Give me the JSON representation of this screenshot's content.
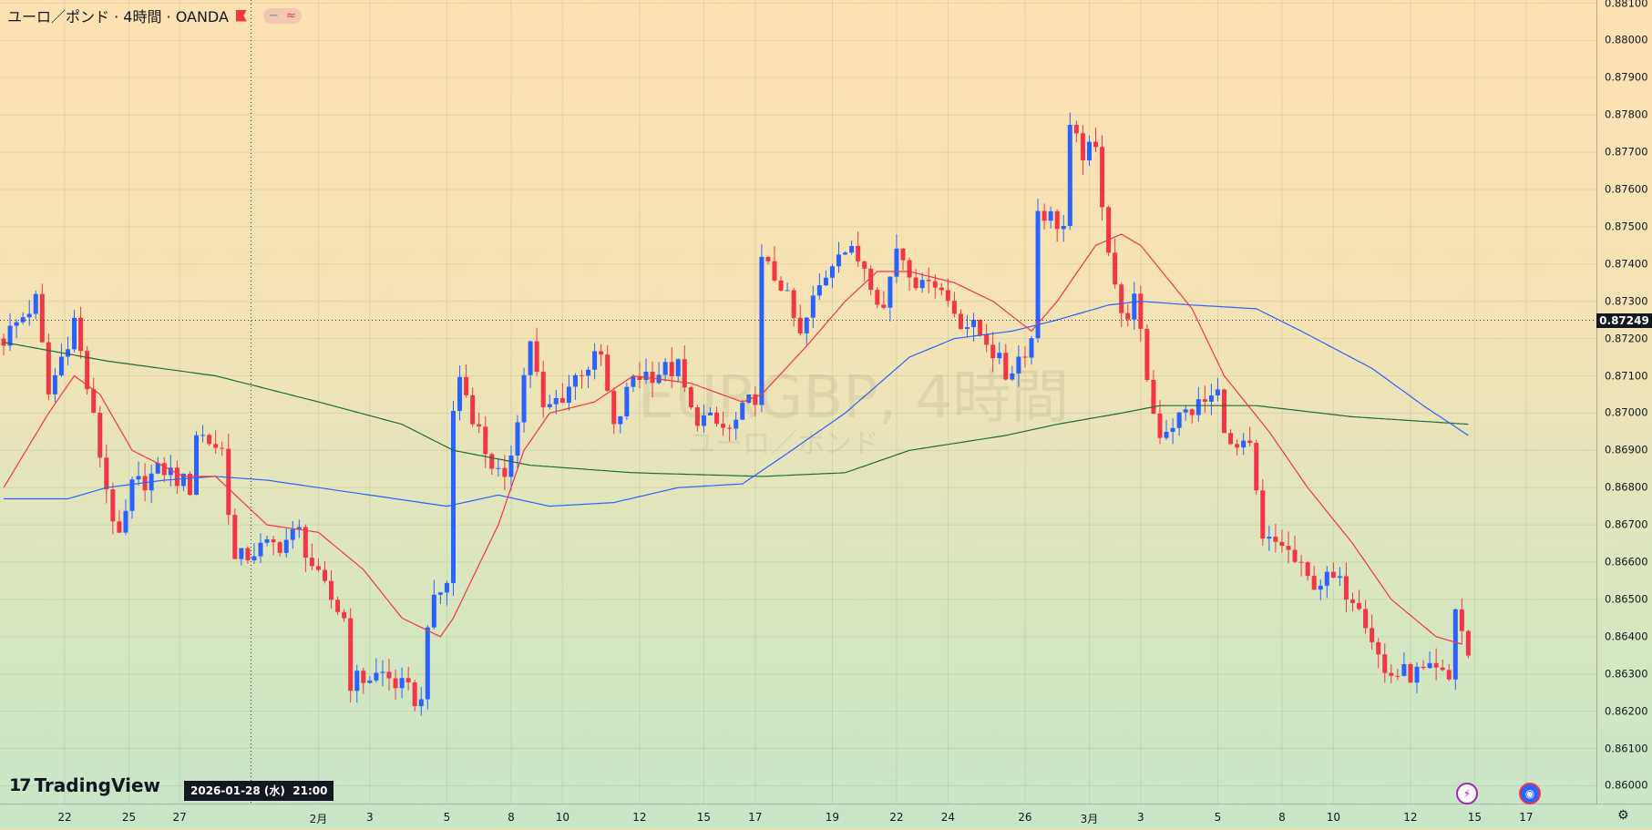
{
  "header": {
    "title": "ユーロ／ポンド · 4時間 · OANDA",
    "badge_a": "−",
    "badge_b": "≈"
  },
  "watermark": {
    "symbol": "EURGBP, 4時間",
    "name": "ユーロ／ポンド"
  },
  "crosshair": {
    "date_label": "2026-01-28 (水)  21:00",
    "price": 0.87249,
    "price_label": "0.87249",
    "candle_index": 38.5
  },
  "logo": "TradingView",
  "colors": {
    "up": "#2962ff",
    "down": "#f23645",
    "ma_fast": "#f23645",
    "ma_mid": "#2962ff",
    "ma_slow": "#1e6b3a"
  },
  "chart_data": {
    "type": "candlestick",
    "symbol": "EURGBP",
    "timeframe": "4時間",
    "ylim": [
      0.86,
      0.881
    ],
    "yticks": [
      "0.88100",
      "0.88000",
      "0.87900",
      "0.87800",
      "0.87700",
      "0.87600",
      "0.87500",
      "0.87400",
      "0.87300",
      "0.87200",
      "0.87100",
      "0.87000",
      "0.86900",
      "0.86800",
      "0.86700",
      "0.86600",
      "0.86500",
      "0.86400",
      "0.86300",
      "0.86200",
      "0.86100",
      "0.86000"
    ],
    "xticks": [
      {
        "t": 9.5,
        "label": "22"
      },
      {
        "t": 19.5,
        "label": "25"
      },
      {
        "t": 27.4,
        "label": "27"
      },
      {
        "t": 49,
        "label": "2月"
      },
      {
        "t": 57,
        "label": "3"
      },
      {
        "t": 69,
        "label": "5"
      },
      {
        "t": 79,
        "label": "8"
      },
      {
        "t": 87,
        "label": "10"
      },
      {
        "t": 99,
        "label": "12"
      },
      {
        "t": 109,
        "label": "15"
      },
      {
        "t": 117,
        "label": "17"
      },
      {
        "t": 129,
        "label": "19"
      },
      {
        "t": 139,
        "label": "22"
      },
      {
        "t": 147,
        "label": "24"
      },
      {
        "t": 159,
        "label": "26"
      },
      {
        "t": 169,
        "label": "3月"
      },
      {
        "t": 177,
        "label": "3"
      },
      {
        "t": 189,
        "label": "5"
      },
      {
        "t": 199,
        "label": "8"
      },
      {
        "t": 207,
        "label": "10"
      },
      {
        "t": 219,
        "label": "12"
      },
      {
        "t": 229,
        "label": "15"
      },
      {
        "t": 237,
        "label": "17"
      }
    ],
    "candle_count": 229,
    "close_keypoints": [
      [
        0,
        0.872
      ],
      [
        5,
        0.873
      ],
      [
        7,
        0.8705
      ],
      [
        11,
        0.8725
      ],
      [
        16,
        0.868
      ],
      [
        18,
        0.8665
      ],
      [
        20,
        0.868
      ],
      [
        25,
        0.8685
      ],
      [
        29,
        0.868
      ],
      [
        30,
        0.8695
      ],
      [
        34,
        0.869
      ],
      [
        36,
        0.866
      ],
      [
        39,
        0.8663
      ],
      [
        43,
        0.8665
      ],
      [
        46,
        0.8668
      ],
      [
        49,
        0.8655
      ],
      [
        53,
        0.8645
      ],
      [
        54,
        0.8628
      ],
      [
        59,
        0.863
      ],
      [
        63,
        0.8625
      ],
      [
        65,
        0.8622
      ],
      [
        66,
        0.8645
      ],
      [
        69,
        0.8655
      ],
      [
        70,
        0.87
      ],
      [
        71,
        0.871
      ],
      [
        75,
        0.869
      ],
      [
        78,
        0.868
      ],
      [
        80,
        0.87
      ],
      [
        82,
        0.872
      ],
      [
        84,
        0.87
      ],
      [
        87,
        0.8705
      ],
      [
        90,
        0.8712
      ],
      [
        93,
        0.8715
      ],
      [
        95,
        0.8695
      ],
      [
        98,
        0.871
      ],
      [
        105,
        0.8712
      ],
      [
        107,
        0.87
      ],
      [
        113,
        0.8695
      ],
      [
        117,
        0.8705
      ],
      [
        118,
        0.874
      ],
      [
        121,
        0.8735
      ],
      [
        124,
        0.872
      ],
      [
        126,
        0.873
      ],
      [
        130,
        0.8745
      ],
      [
        134,
        0.874
      ],
      [
        137,
        0.8728
      ],
      [
        139,
        0.8745
      ],
      [
        143,
        0.8733
      ],
      [
        144,
        0.8738
      ],
      [
        149,
        0.8725
      ],
      [
        153,
        0.872
      ],
      [
        156,
        0.871
      ],
      [
        160,
        0.872
      ],
      [
        161,
        0.8755
      ],
      [
        165,
        0.875
      ],
      [
        166,
        0.8775
      ],
      [
        168,
        0.877
      ],
      [
        170,
        0.877
      ],
      [
        172,
        0.8745
      ],
      [
        174,
        0.8725
      ],
      [
        176,
        0.873
      ],
      [
        179,
        0.87
      ],
      [
        180,
        0.8695
      ],
      [
        184,
        0.87
      ],
      [
        189,
        0.8705
      ],
      [
        191,
        0.869
      ],
      [
        194,
        0.869
      ],
      [
        196,
        0.8665
      ],
      [
        199,
        0.8665
      ],
      [
        201,
        0.866
      ],
      [
        203,
        0.8655
      ],
      [
        207,
        0.8655
      ],
      [
        211,
        0.865
      ],
      [
        215,
        0.863
      ],
      [
        218,
        0.863
      ],
      [
        223,
        0.863
      ],
      [
        225,
        0.8628
      ],
      [
        226,
        0.8648
      ],
      [
        228,
        0.8635
      ]
    ],
    "ma_fast": [
      [
        0,
        0.868
      ],
      [
        7,
        0.87
      ],
      [
        11,
        0.871
      ],
      [
        15,
        0.8705
      ],
      [
        20,
        0.869
      ],
      [
        28,
        0.8683
      ],
      [
        33,
        0.8683
      ],
      [
        41,
        0.867
      ],
      [
        49,
        0.8668
      ],
      [
        56,
        0.8658
      ],
      [
        62,
        0.8645
      ],
      [
        68,
        0.864
      ],
      [
        70,
        0.8645
      ],
      [
        77,
        0.867
      ],
      [
        81,
        0.869
      ],
      [
        85,
        0.87
      ],
      [
        92,
        0.8703
      ],
      [
        98,
        0.871
      ],
      [
        107,
        0.8708
      ],
      [
        115,
        0.8703
      ],
      [
        118,
        0.8705
      ],
      [
        125,
        0.8718
      ],
      [
        131,
        0.873
      ],
      [
        136,
        0.8738
      ],
      [
        141,
        0.8738
      ],
      [
        148,
        0.8735
      ],
      [
        154,
        0.873
      ],
      [
        160,
        0.8722
      ],
      [
        164,
        0.873
      ],
      [
        170,
        0.8745
      ],
      [
        174,
        0.8748
      ],
      [
        177,
        0.8745
      ],
      [
        185,
        0.8728
      ],
      [
        190,
        0.871
      ],
      [
        197,
        0.8695
      ],
      [
        203,
        0.868
      ],
      [
        210,
        0.8665
      ],
      [
        216,
        0.865
      ],
      [
        223,
        0.864
      ],
      [
        227,
        0.8638
      ]
    ],
    "ma_mid": [
      [
        0,
        0.8677
      ],
      [
        10,
        0.8677
      ],
      [
        16,
        0.868
      ],
      [
        25,
        0.8682
      ],
      [
        33,
        0.8683
      ],
      [
        41,
        0.8682
      ],
      [
        49,
        0.868
      ],
      [
        57,
        0.8678
      ],
      [
        69,
        0.8675
      ],
      [
        77,
        0.8678
      ],
      [
        85,
        0.8675
      ],
      [
        95,
        0.8676
      ],
      [
        105,
        0.868
      ],
      [
        115,
        0.8681
      ],
      [
        121,
        0.8688
      ],
      [
        131,
        0.87
      ],
      [
        141,
        0.8715
      ],
      [
        148,
        0.872
      ],
      [
        157,
        0.8722
      ],
      [
        164,
        0.8725
      ],
      [
        172,
        0.8729
      ],
      [
        177,
        0.873
      ],
      [
        185,
        0.8729
      ],
      [
        195,
        0.8728
      ],
      [
        202,
        0.8722
      ],
      [
        213,
        0.8712
      ],
      [
        221,
        0.8702
      ],
      [
        228,
        0.8694
      ]
    ],
    "ma_slow": [
      [
        0,
        0.8719
      ],
      [
        16,
        0.8714
      ],
      [
        33,
        0.871
      ],
      [
        49,
        0.8703
      ],
      [
        62,
        0.8697
      ],
      [
        70,
        0.869
      ],
      [
        82,
        0.8686
      ],
      [
        98,
        0.8684
      ],
      [
        118,
        0.8683
      ],
      [
        131,
        0.8684
      ],
      [
        141,
        0.869
      ],
      [
        156,
        0.8694
      ],
      [
        164,
        0.8697
      ],
      [
        174,
        0.87
      ],
      [
        180,
        0.8702
      ],
      [
        195,
        0.8702
      ],
      [
        210,
        0.8699
      ],
      [
        228,
        0.8697
      ]
    ]
  },
  "events": [
    {
      "icon": "lightning-icon",
      "glyph": "⚡"
    },
    {
      "icon": "globe-icon",
      "glyph": "◉"
    }
  ]
}
